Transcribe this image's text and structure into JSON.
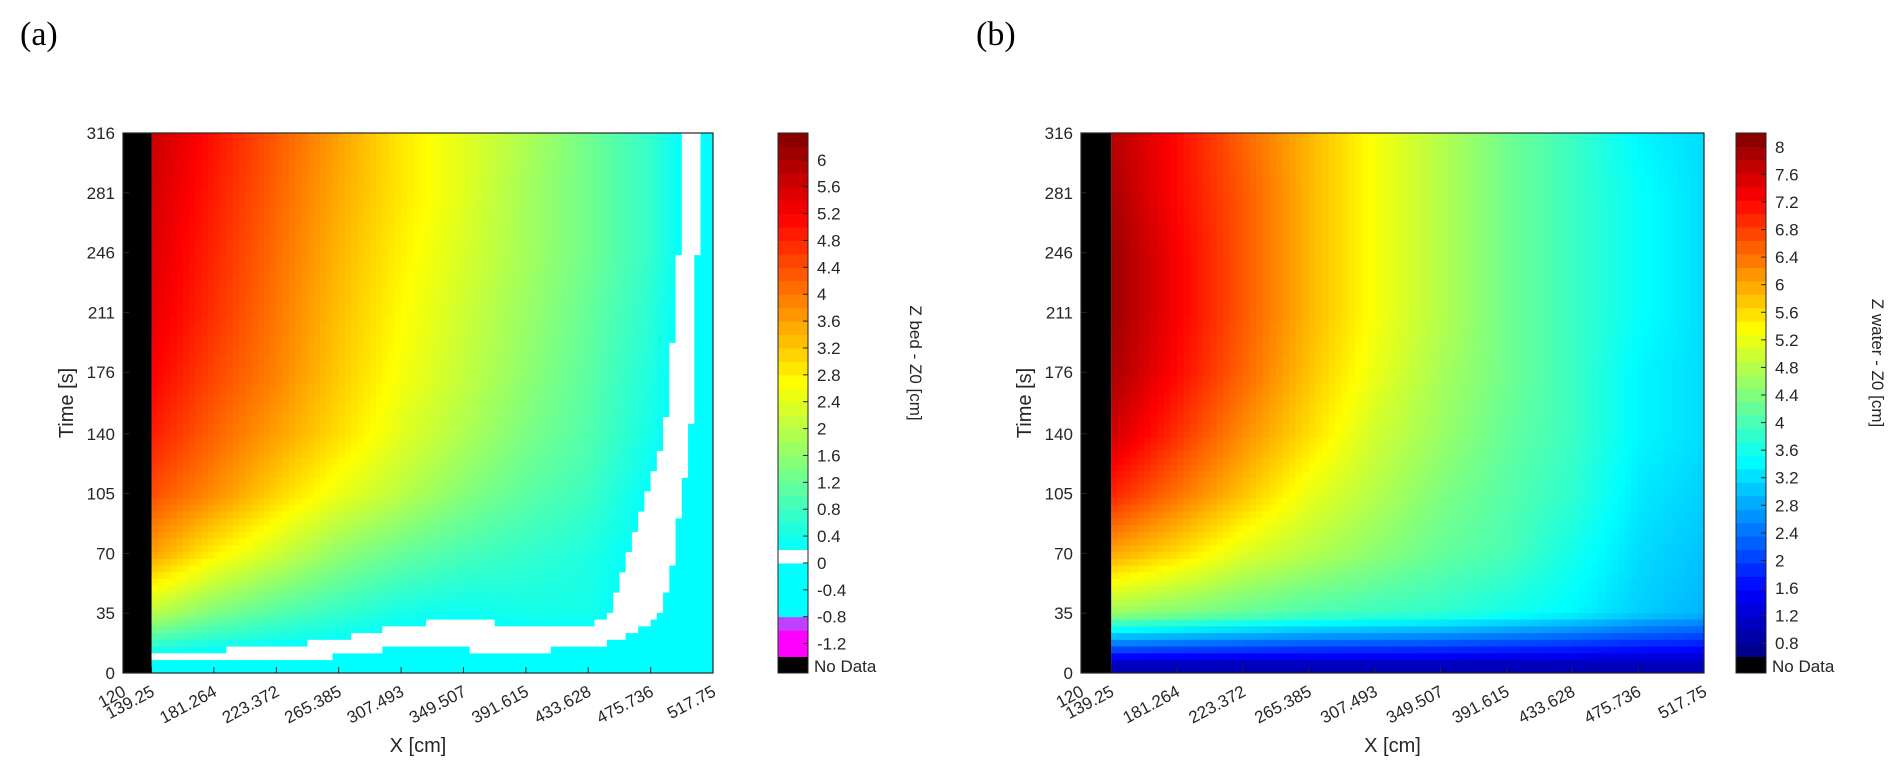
{
  "panels": [
    {
      "label": "(a)"
    },
    {
      "label": "(b)"
    }
  ],
  "chart_data": [
    {
      "type": "heatmap",
      "xlabel": "X [cm]",
      "ylabel": "Time [s]",
      "colorbar_label": "Z bed - Z0 [cm]",
      "x_ticks": [
        "120",
        "139.25",
        "181.264",
        "223.372",
        "265.385",
        "307.493",
        "349.507",
        "391.615",
        "433.628",
        "475.736",
        "517.75"
      ],
      "x_tick_values": [
        120,
        139.25,
        181.264,
        223.372,
        265.385,
        307.493,
        349.507,
        391.615,
        433.628,
        475.736,
        517.75
      ],
      "y_ticks": [
        "0",
        "35",
        "70",
        "105",
        "140",
        "176",
        "211",
        "246",
        "281",
        "316"
      ],
      "y_tick_values": [
        0,
        35,
        70,
        105,
        140,
        176,
        211,
        246,
        281,
        316
      ],
      "xlim": [
        120,
        517.75
      ],
      "ylim": [
        0,
        316
      ],
      "no_data_x_range": [
        120,
        139.25
      ],
      "colorbar_ticks": [
        "6",
        "5.6",
        "5.2",
        "4.8",
        "4.4",
        "4",
        "3.6",
        "3.2",
        "2.8",
        "2.4",
        "2",
        "1.6",
        "1.2",
        "0.8",
        "0.4",
        "0",
        "-0.4",
        "-0.8",
        "-1.2"
      ],
      "colorbar_tick_values": [
        6,
        5.6,
        5.2,
        4.8,
        4.4,
        4,
        3.6,
        3.2,
        2.8,
        2.4,
        2,
        1.6,
        1.2,
        0.8,
        0.4,
        0,
        -0.4,
        -0.8,
        -1.2
      ],
      "colorbar_range": [
        -1.4,
        6.4
      ],
      "colorbar_nodata_label": "No Data",
      "colormap": "jet with white band at 0",
      "value_grid": {
        "x": [
          139.25,
          181.264,
          223.372,
          265.385,
          307.493,
          349.507,
          391.615,
          433.628,
          475.736,
          517.75
        ],
        "t": [
          5,
          35,
          70,
          105,
          140,
          176,
          211,
          246,
          281,
          316
        ],
        "z": [
          [
            -0.2,
            -0.2,
            -0.2,
            -0.2,
            -0.3,
            -0.2,
            -0.2,
            -0.3,
            -0.3,
            -0.3
          ],
          [
            2.0,
            1.4,
            1.0,
            0.7,
            0.4,
            0.3,
            0.4,
            0.4,
            0.0,
            -0.3
          ],
          [
            3.6,
            2.8,
            2.2,
            1.6,
            1.2,
            0.9,
            0.7,
            0.5,
            0.1,
            -0.3
          ],
          [
            4.4,
            3.8,
            3.1,
            2.5,
            2.0,
            1.5,
            1.1,
            0.8,
            0.2,
            -0.3
          ],
          [
            4.9,
            4.2,
            3.6,
            3.0,
            2.4,
            1.9,
            1.4,
            1.0,
            0.4,
            -0.3
          ],
          [
            5.2,
            4.5,
            3.9,
            3.2,
            2.6,
            2.1,
            1.6,
            1.1,
            0.5,
            -0.3
          ],
          [
            5.4,
            4.7,
            4.0,
            3.3,
            2.7,
            2.2,
            1.7,
            1.2,
            0.6,
            -0.3
          ],
          [
            5.5,
            4.8,
            4.1,
            3.4,
            2.8,
            2.3,
            1.8,
            1.3,
            0.7,
            -0.3
          ],
          [
            5.6,
            4.9,
            4.2,
            3.5,
            2.9,
            2.4,
            1.8,
            1.3,
            0.7,
            -0.3
          ],
          [
            5.7,
            5.0,
            4.3,
            3.6,
            2.9,
            2.4,
            1.9,
            1.3,
            0.7,
            -0.3
          ]
        ]
      }
    },
    {
      "type": "heatmap",
      "xlabel": "X [cm]",
      "ylabel": "Time [s]",
      "colorbar_label": "Z water - Z0 [cm]",
      "x_ticks": [
        "120",
        "139.25",
        "181.264",
        "223.372",
        "265.385",
        "307.493",
        "349.507",
        "391.615",
        "433.628",
        "475.736",
        "517.75"
      ],
      "x_tick_values": [
        120,
        139.25,
        181.264,
        223.372,
        265.385,
        307.493,
        349.507,
        391.615,
        433.628,
        475.736,
        517.75
      ],
      "y_ticks": [
        "0",
        "35",
        "70",
        "105",
        "140",
        "176",
        "211",
        "246",
        "281",
        "316"
      ],
      "y_tick_values": [
        0,
        35,
        70,
        105,
        140,
        176,
        211,
        246,
        281,
        316
      ],
      "xlim": [
        120,
        517.75
      ],
      "ylim": [
        0,
        316
      ],
      "no_data_x_range": [
        120,
        139.25
      ],
      "colorbar_ticks": [
        "8",
        "7.6",
        "7.2",
        "6.8",
        "6.4",
        "6",
        "5.6",
        "5.2",
        "4.8",
        "4.4",
        "4",
        "3.6",
        "3.2",
        "2.8",
        "2.4",
        "2",
        "1.6",
        "1.2",
        "0.8"
      ],
      "colorbar_tick_values": [
        8,
        7.6,
        7.2,
        6.8,
        6.4,
        6,
        5.6,
        5.2,
        4.8,
        4.4,
        4,
        3.6,
        3.2,
        2.8,
        2.4,
        2,
        1.6,
        1.2,
        0.8
      ],
      "colorbar_range": [
        0.6,
        8.2
      ],
      "colorbar_nodata_label": "No Data",
      "colormap": "jet",
      "value_grid": {
        "x": [
          139.25,
          181.264,
          223.372,
          265.385,
          307.493,
          349.507,
          391.615,
          433.628,
          475.736,
          517.75
        ],
        "t": [
          5,
          35,
          70,
          105,
          140,
          176,
          211,
          246,
          281,
          316
        ],
        "z": [
          [
            1.0,
            1.0,
            1.0,
            1.0,
            1.0,
            1.0,
            1.0,
            1.0,
            1.0,
            1.0
          ],
          [
            4.6,
            4.4,
            4.2,
            4.0,
            3.9,
            3.8,
            3.6,
            3.4,
            3.1,
            2.9
          ],
          [
            6.0,
            5.6,
            5.1,
            4.8,
            4.5,
            4.2,
            4.0,
            3.6,
            3.2,
            3.0
          ],
          [
            7.0,
            6.4,
            5.8,
            5.2,
            4.8,
            4.4,
            4.1,
            3.8,
            3.3,
            3.1
          ],
          [
            7.6,
            6.9,
            6.2,
            5.6,
            5.0,
            4.6,
            4.2,
            3.9,
            3.4,
            3.2
          ],
          [
            7.9,
            7.2,
            6.5,
            5.8,
            5.2,
            4.7,
            4.3,
            3.9,
            3.4,
            3.2
          ],
          [
            8.0,
            7.3,
            6.6,
            5.9,
            5.3,
            4.8,
            4.3,
            3.9,
            3.5,
            3.2
          ],
          [
            8.0,
            7.3,
            6.6,
            5.9,
            5.3,
            4.8,
            4.3,
            3.9,
            3.5,
            3.2
          ],
          [
            7.9,
            7.2,
            6.6,
            5.9,
            5.3,
            4.8,
            4.3,
            3.9,
            3.5,
            3.2
          ],
          [
            7.8,
            7.2,
            6.5,
            5.9,
            5.3,
            4.8,
            4.3,
            3.9,
            3.4,
            3.2
          ]
        ]
      }
    }
  ]
}
